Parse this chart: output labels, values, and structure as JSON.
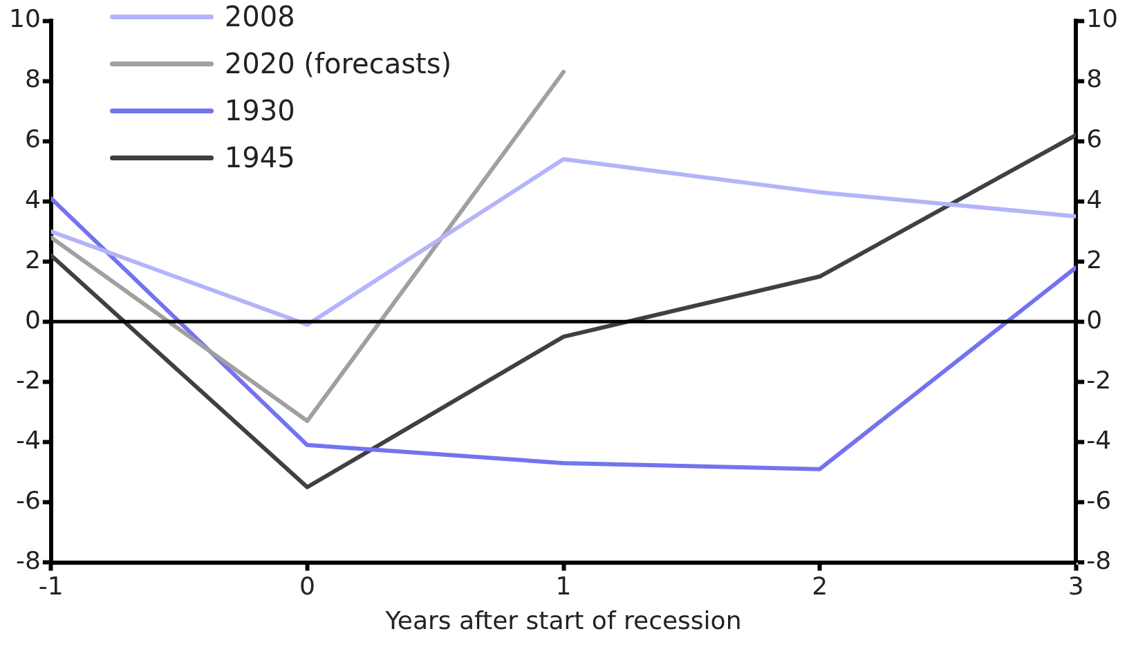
{
  "chart_data": {
    "type": "line",
    "xlabel": "Years after start of recession",
    "x": [
      -1,
      0,
      1,
      2,
      3
    ],
    "xlim": [
      -1,
      3
    ],
    "xticks": [
      -1,
      0,
      1,
      2,
      3
    ],
    "ylim": [
      -8,
      10
    ],
    "yticks": [
      -8,
      -6,
      -4,
      -2,
      0,
      2,
      4,
      6,
      8,
      10
    ],
    "y2lim": [
      -8,
      10
    ],
    "y2ticks": [
      -8,
      -6,
      -4,
      -2,
      0,
      2,
      4,
      6,
      8,
      10
    ],
    "series": [
      {
        "name": "2008",
        "color": "#b4b4fa",
        "values": [
          3.0,
          -0.1,
          5.4,
          4.3,
          3.5
        ]
      },
      {
        "name": "2020 (forecasts)",
        "color": "#a0a0a0",
        "values": [
          2.8,
          -3.3,
          8.3,
          null,
          null
        ]
      },
      {
        "name": "1930",
        "color": "#7373f0",
        "values": [
          4.1,
          -4.1,
          -4.7,
          -4.9,
          1.8
        ]
      },
      {
        "name": "1945",
        "color": "#404040",
        "values": [
          2.2,
          -5.5,
          -0.5,
          1.5,
          6.2
        ]
      }
    ],
    "ref_lines": [
      {
        "axis": "y",
        "value": 0,
        "color": "#000000"
      }
    ],
    "grid": false,
    "legend": "top left",
    "marker": "none",
    "line_style": "solid"
  }
}
